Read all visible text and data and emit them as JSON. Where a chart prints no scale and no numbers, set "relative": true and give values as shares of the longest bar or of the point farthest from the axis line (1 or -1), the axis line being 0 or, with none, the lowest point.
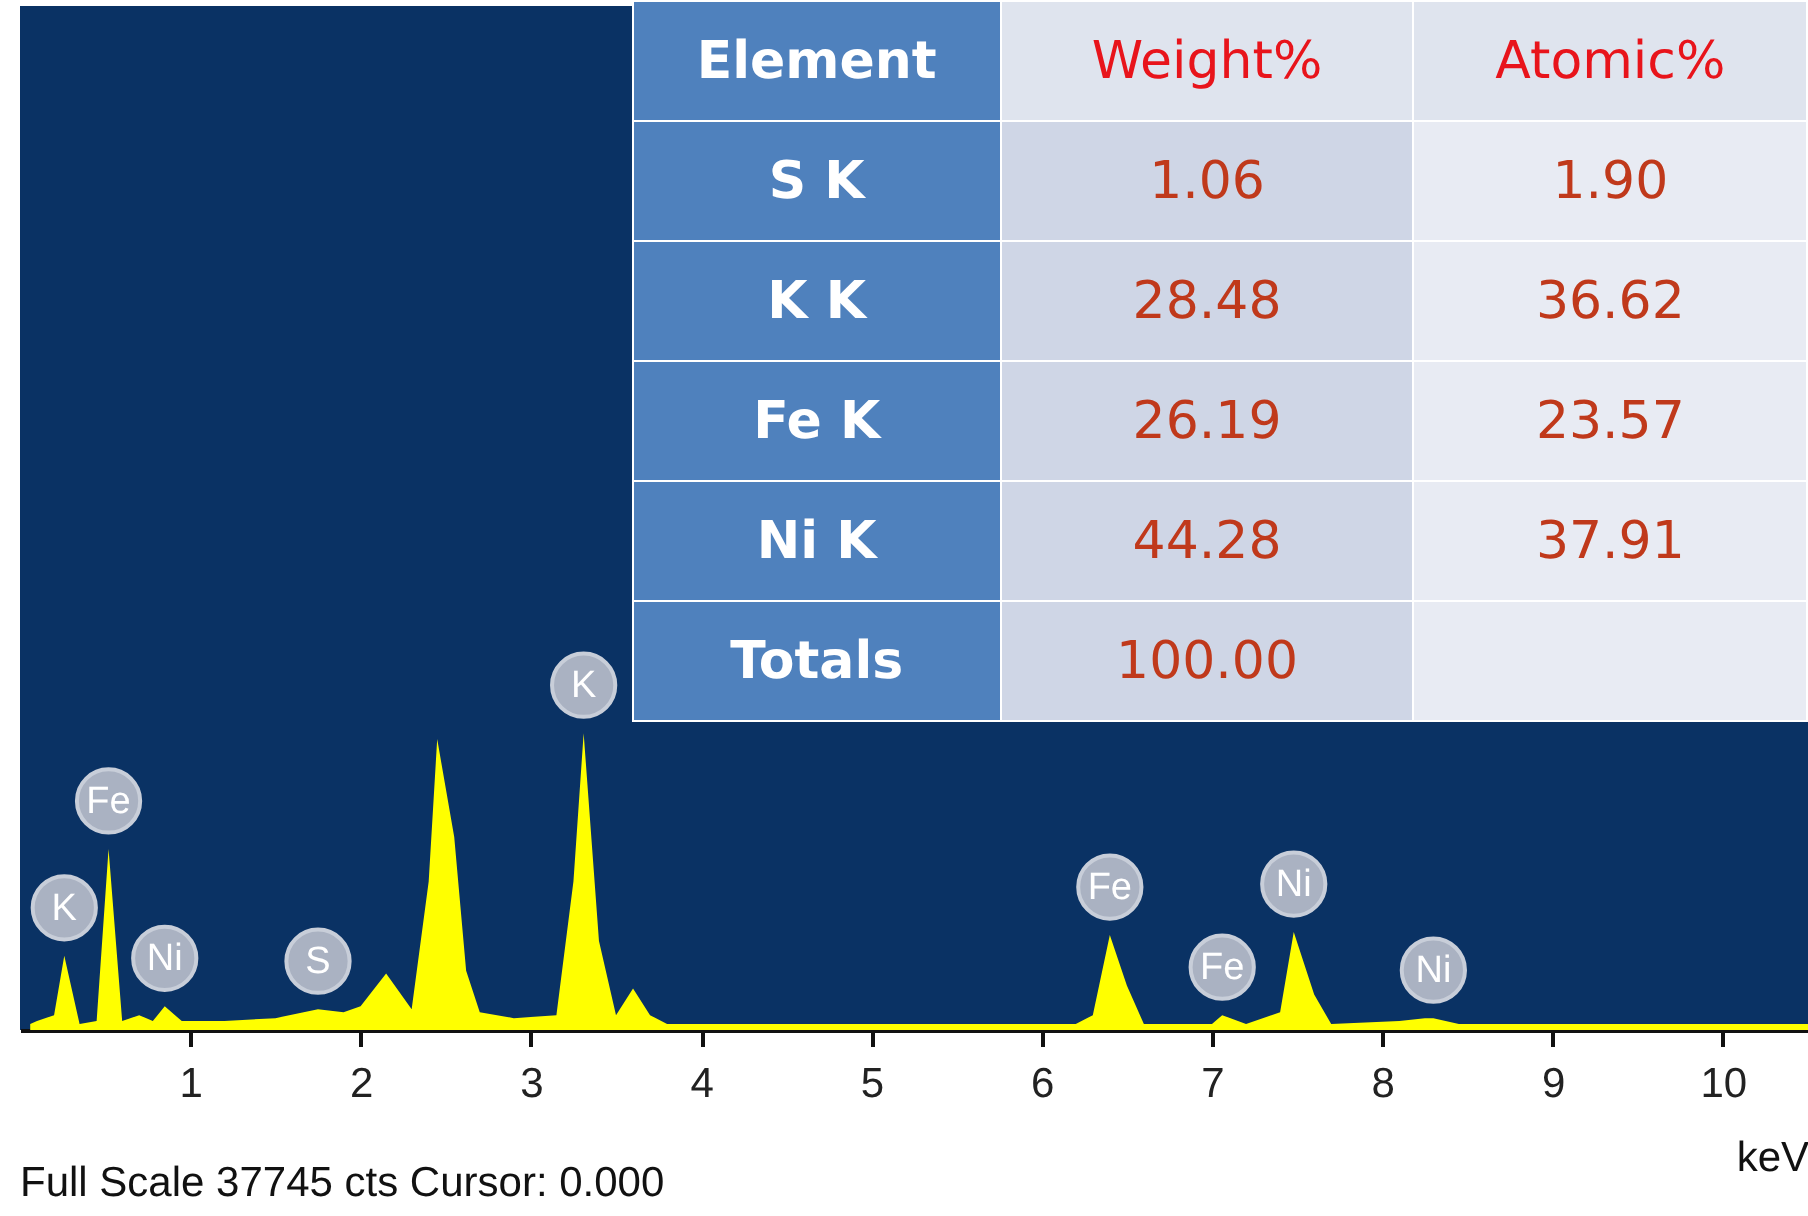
{
  "chart_data": [
    {
      "type": "area",
      "relative": true,
      "xlabel": "keV",
      "xlim": [
        0,
        10.5
      ],
      "xticks": [
        1,
        2,
        3,
        4,
        5,
        6,
        7,
        8,
        9,
        10
      ],
      "grid": false,
      "x": [
        0.06,
        0.1,
        0.2,
        0.26,
        0.35,
        0.45,
        0.52,
        0.6,
        0.7,
        0.78,
        0.85,
        0.95,
        1.2,
        1.5,
        1.75,
        1.9,
        2.0,
        2.15,
        2.3,
        2.4,
        2.45,
        2.55,
        2.62,
        2.7,
        2.9,
        3.15,
        3.25,
        3.31,
        3.4,
        3.5,
        3.6,
        3.7,
        3.8,
        4.5,
        5.5,
        6.2,
        6.3,
        6.4,
        6.5,
        6.6,
        7.0,
        7.06,
        7.2,
        7.4,
        7.48,
        7.6,
        7.7,
        8.1,
        8.25,
        8.3,
        8.45,
        9.0,
        10.0,
        10.5
      ],
      "series": [
        {
          "color": "#ffff00",
          "values": [
            0.02,
            0.03,
            0.05,
            0.25,
            0.02,
            0.03,
            0.61,
            0.03,
            0.05,
            0.03,
            0.08,
            0.03,
            0.03,
            0.04,
            0.07,
            0.06,
            0.08,
            0.19,
            0.07,
            0.5,
            0.98,
            0.65,
            0.2,
            0.06,
            0.04,
            0.05,
            0.5,
            1.0,
            0.3,
            0.05,
            0.14,
            0.05,
            0.02,
            0.02,
            0.02,
            0.02,
            0.05,
            0.32,
            0.15,
            0.02,
            0.02,
            0.05,
            0.02,
            0.06,
            0.33,
            0.12,
            0.02,
            0.03,
            0.04,
            0.04,
            0.02,
            0.02,
            0.02,
            0.02
          ]
        }
      ],
      "annotations": [
        {
          "text": "K",
          "x": 0.26,
          "y": 0.25
        },
        {
          "text": "Fe",
          "x": 0.52,
          "y": 0.61
        },
        {
          "text": "Ni",
          "x": 0.85,
          "y": 0.08
        },
        {
          "text": "S",
          "x": 1.75,
          "y": 0.07
        },
        {
          "text": "K",
          "x": 3.31,
          "y": 1.0
        },
        {
          "text": "Fe",
          "x": 6.4,
          "y": 0.32
        },
        {
          "text": "Fe",
          "x": 7.06,
          "y": 0.05
        },
        {
          "text": "Ni",
          "x": 7.48,
          "y": 0.33
        },
        {
          "text": "Ni",
          "x": 8.3,
          "y": 0.04
        },
        "Full Scale 37745 cts Cursor: 0.000"
      ]
    },
    {
      "type": "other",
      "annotations": [
        "Element",
        "Weight%",
        "Atomic%",
        "S K",
        "1.06",
        "1.90",
        "K K",
        "28.48",
        "36.62",
        "Fe K",
        "26.19",
        "23.57",
        "Ni K",
        "44.28",
        "37.91",
        "Totals",
        "100.00"
      ]
    }
  ]
}
